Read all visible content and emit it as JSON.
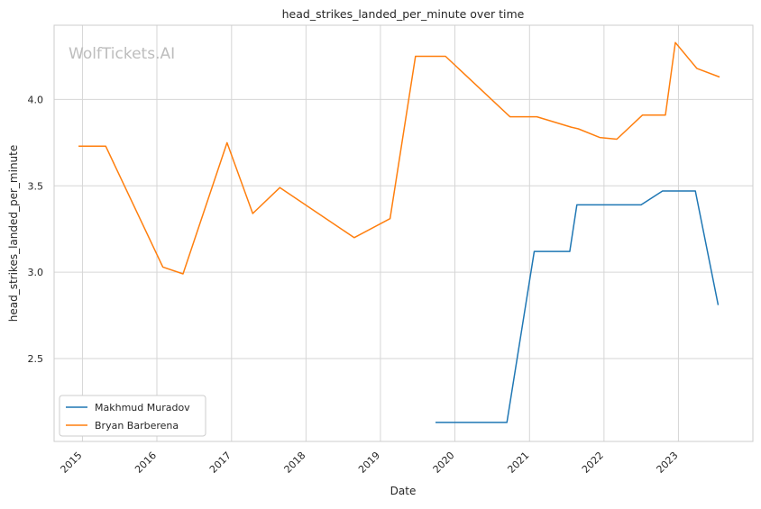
{
  "watermark": "WolfTickets.AI",
  "chart_data": {
    "type": "line",
    "title": "head_strikes_landed_per_minute over time",
    "xlabel": "Date",
    "ylabel": "head_strikes_landed_per_minute",
    "xlim": [
      "2014-08-15",
      "2024-01-01"
    ],
    "ylim": [
      2.02,
      4.43
    ],
    "x_ticks": [
      "2015",
      "2016",
      "2017",
      "2018",
      "2019",
      "2020",
      "2021",
      "2022",
      "2023"
    ],
    "y_ticks": [
      "2.5",
      "3.0",
      "3.5",
      "4.0"
    ],
    "grid": true,
    "legend_position": "lower-left",
    "series": [
      {
        "name": "Makhmud Muradov",
        "color": "#1f77b4",
        "points": [
          [
            "2019-09-28",
            2.13
          ],
          [
            "2020-09-12",
            2.13
          ],
          [
            "2021-01-24",
            3.12
          ],
          [
            "2021-07-17",
            3.12
          ],
          [
            "2021-08-21",
            3.39
          ],
          [
            "2022-07-02",
            3.39
          ],
          [
            "2022-10-15",
            3.47
          ],
          [
            "2023-03-25",
            3.47
          ],
          [
            "2023-07-15",
            2.81
          ]
        ]
      },
      {
        "name": "Bryan Barberena",
        "color": "#ff7f0e",
        "points": [
          [
            "2014-12-13",
            3.73
          ],
          [
            "2015-04-25",
            3.73
          ],
          [
            "2016-01-30",
            3.03
          ],
          [
            "2016-05-08",
            2.99
          ],
          [
            "2016-12-10",
            3.75
          ],
          [
            "2017-04-15",
            3.34
          ],
          [
            "2017-08-26",
            3.49
          ],
          [
            "2018-08-25",
            3.2
          ],
          [
            "2019-02-17",
            3.31
          ],
          [
            "2019-06-22",
            4.25
          ],
          [
            "2019-11-16",
            4.25
          ],
          [
            "2020-09-27",
            3.9
          ],
          [
            "2021-02-06",
            3.9
          ],
          [
            "2021-07-24",
            3.84
          ],
          [
            "2021-08-28",
            3.83
          ],
          [
            "2021-12-11",
            3.78
          ],
          [
            "2022-03-05",
            3.77
          ],
          [
            "2022-07-09",
            3.91
          ],
          [
            "2022-10-29",
            3.91
          ],
          [
            "2022-12-17",
            4.33
          ],
          [
            "2023-04-01",
            4.18
          ],
          [
            "2023-07-22",
            4.13
          ]
        ]
      }
    ]
  }
}
